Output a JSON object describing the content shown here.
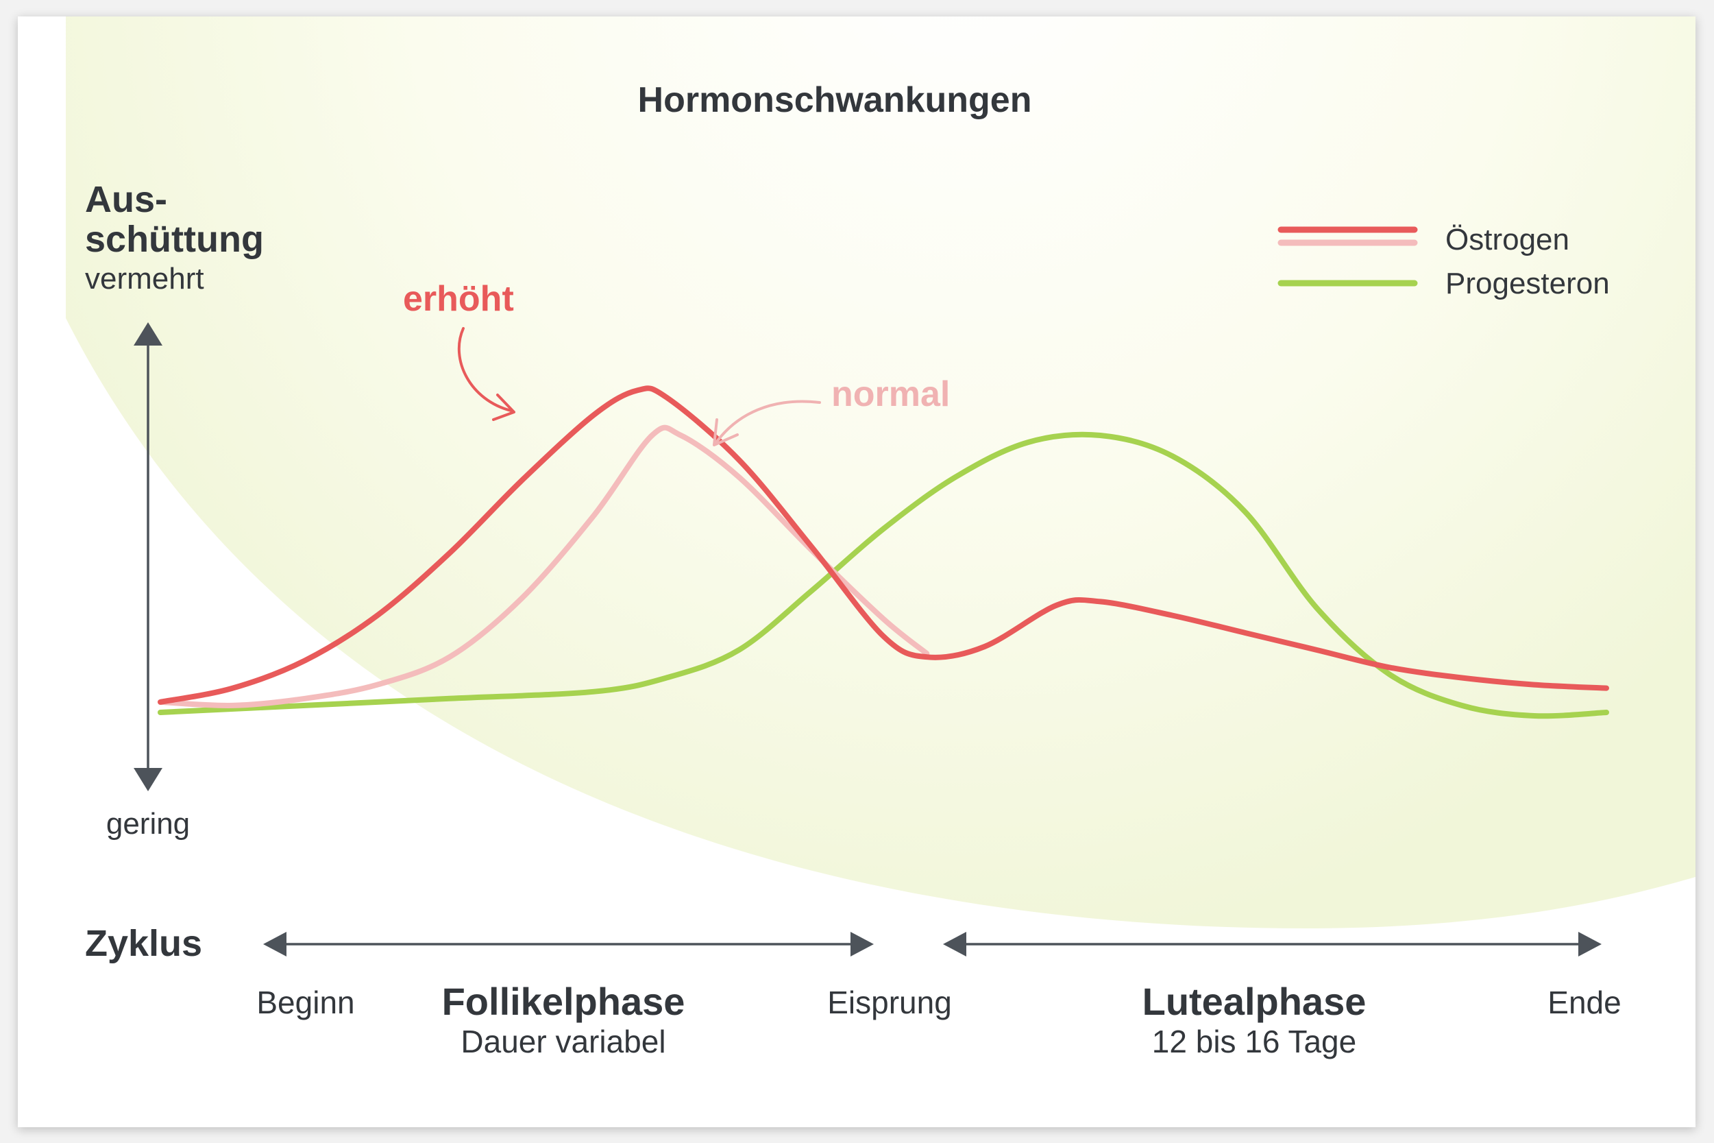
{
  "chart_data": {
    "type": "line",
    "title": "Hormonschwankungen",
    "y_axis": {
      "label_line1": "Aus-",
      "label_line2": "schüttung",
      "high_label": "vermehrt",
      "low_label": "gering"
    },
    "x_axis": {
      "label": "Zyklus",
      "ticks": [
        "Beginn",
        "Eisprung",
        "Ende"
      ],
      "range": [
        0,
        100
      ],
      "markers": {
        "Beginn": 0,
        "Eisprung": 48,
        "Ende": 100
      }
    },
    "phases": [
      {
        "name": "Follikelphase",
        "duration": "Dauer variabel",
        "start": 0,
        "end": 48
      },
      {
        "name": "Lutealphase",
        "duration": "12 bis 16 Tage",
        "start": 52,
        "end": 100
      }
    ],
    "ylim": [
      0,
      100
    ],
    "legend": {
      "placement": "top-right",
      "items": [
        {
          "label": "Östrogen",
          "colors": [
            "#e85a5a",
            "#f4bcbc"
          ]
        },
        {
          "label": "Progesteron",
          "colors": [
            "#a6d24f"
          ]
        }
      ]
    },
    "annotations": [
      {
        "text": "erhöht",
        "target": "oestrogen_erhoeht",
        "color": "#e85a5a"
      },
      {
        "text": "normal",
        "target": "oestrogen_normal",
        "color": "#f0b2b2"
      }
    ],
    "series": [
      {
        "id": "oestrogen_erhoeht",
        "color": "#e85a5a",
        "x": [
          0,
          5,
          10,
          15,
          20,
          25,
          30,
          33,
          35,
          40,
          45,
          50,
          53,
          57,
          62,
          65,
          70,
          75,
          80,
          85,
          90,
          95,
          100
        ],
        "y": [
          3,
          7,
          15,
          28,
          46,
          67,
          86,
          93,
          91,
          73,
          48,
          22,
          16,
          19,
          31,
          32,
          28,
          23,
          18,
          13,
          10,
          8,
          7
        ]
      },
      {
        "id": "oestrogen_normal",
        "color": "#f4bcbc",
        "x": [
          0,
          5,
          10,
          15,
          20,
          25,
          30,
          34,
          36,
          40,
          45,
          50,
          53
        ],
        "y": [
          3,
          2,
          4,
          8,
          16,
          33,
          57,
          80,
          80,
          68,
          47,
          27,
          17
        ]
      },
      {
        "id": "progesteron",
        "color": "#a6d24f",
        "x": [
          0,
          10,
          20,
          30,
          35,
          40,
          45,
          50,
          55,
          60,
          65,
          70,
          75,
          80,
          85,
          90,
          95,
          100
        ],
        "y": [
          0,
          2,
          4,
          6,
          10,
          18,
          35,
          53,
          68,
          78,
          80,
          74,
          58,
          30,
          11,
          2,
          -1,
          0
        ]
      }
    ]
  }
}
